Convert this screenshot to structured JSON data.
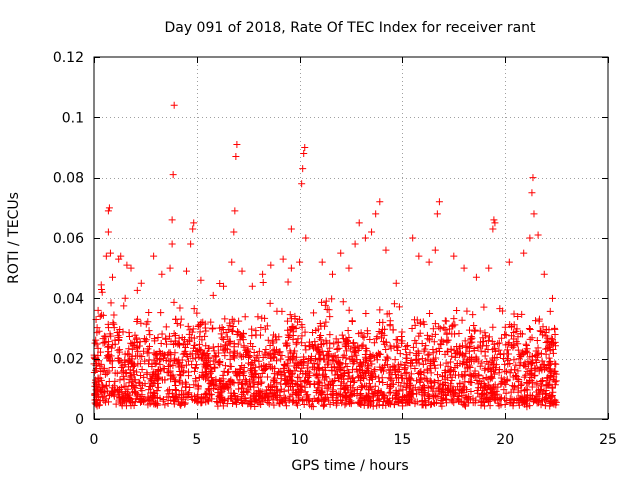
{
  "chart_data": {
    "type": "scatter",
    "title": "Day 091 of 2018, Rate Of TEC Index for receiver rant",
    "xlabel": "GPS time / hours",
    "ylabel": "ROTI / TECUs",
    "xlim": [
      0,
      25
    ],
    "ylim": [
      0,
      0.12
    ],
    "x_ticks": [
      0,
      5,
      10,
      15,
      20,
      25
    ],
    "y_ticks": [
      0,
      0.02,
      0.04,
      0.06,
      0.08,
      0.1,
      0.12
    ],
    "x_tick_labels": [
      "0",
      "5",
      "10",
      "15",
      "20",
      "25"
    ],
    "y_tick_labels": [
      "0",
      "0.02",
      "0.04",
      "0.06",
      "0.08",
      "0.1",
      "0.12"
    ],
    "grid": true,
    "marker": "plus",
    "color": "#ff0000",
    "data_extent_x": [
      0,
      22.5
    ],
    "series": [
      {
        "name": "ROTI",
        "note": "dense scatter band ~0.005-0.03 TECU/s across 0-22.5 h; notable outliers listed",
        "points": [
          {
            "x": 0.1,
            "y": 0.033
          },
          {
            "x": 0.2,
            "y": 0.036
          },
          {
            "x": 0.4,
            "y": 0.042
          },
          {
            "x": 0.6,
            "y": 0.054
          },
          {
            "x": 0.7,
            "y": 0.062
          },
          {
            "x": 0.7,
            "y": 0.069
          },
          {
            "x": 0.75,
            "y": 0.07
          },
          {
            "x": 0.8,
            "y": 0.055
          },
          {
            "x": 0.9,
            "y": 0.047
          },
          {
            "x": 1.2,
            "y": 0.053
          },
          {
            "x": 1.3,
            "y": 0.054
          },
          {
            "x": 1.6,
            "y": 0.051
          },
          {
            "x": 1.8,
            "y": 0.05
          },
          {
            "x": 2.3,
            "y": 0.045
          },
          {
            "x": 2.9,
            "y": 0.054
          },
          {
            "x": 3.3,
            "y": 0.048
          },
          {
            "x": 3.7,
            "y": 0.05
          },
          {
            "x": 3.8,
            "y": 0.058
          },
          {
            "x": 3.8,
            "y": 0.066
          },
          {
            "x": 3.85,
            "y": 0.081
          },
          {
            "x": 3.9,
            "y": 0.104
          },
          {
            "x": 4.5,
            "y": 0.049
          },
          {
            "x": 4.7,
            "y": 0.058
          },
          {
            "x": 4.8,
            "y": 0.063
          },
          {
            "x": 4.85,
            "y": 0.065
          },
          {
            "x": 5.2,
            "y": 0.046
          },
          {
            "x": 5.8,
            "y": 0.041
          },
          {
            "x": 6.3,
            "y": 0.044
          },
          {
            "x": 6.7,
            "y": 0.052
          },
          {
            "x": 6.8,
            "y": 0.062
          },
          {
            "x": 6.85,
            "y": 0.069
          },
          {
            "x": 6.9,
            "y": 0.087
          },
          {
            "x": 6.95,
            "y": 0.091
          },
          {
            "x": 7.2,
            "y": 0.049
          },
          {
            "x": 7.7,
            "y": 0.044
          },
          {
            "x": 8.2,
            "y": 0.048
          },
          {
            "x": 8.6,
            "y": 0.051
          },
          {
            "x": 9.2,
            "y": 0.053
          },
          {
            "x": 9.6,
            "y": 0.05
          },
          {
            "x": 9.6,
            "y": 0.063
          },
          {
            "x": 10.0,
            "y": 0.052
          },
          {
            "x": 10.1,
            "y": 0.078
          },
          {
            "x": 10.15,
            "y": 0.083
          },
          {
            "x": 10.2,
            "y": 0.088
          },
          {
            "x": 10.25,
            "y": 0.09
          },
          {
            "x": 10.3,
            "y": 0.06
          },
          {
            "x": 11.1,
            "y": 0.052
          },
          {
            "x": 11.6,
            "y": 0.048
          },
          {
            "x": 12.0,
            "y": 0.055
          },
          {
            "x": 12.4,
            "y": 0.05
          },
          {
            "x": 12.7,
            "y": 0.058
          },
          {
            "x": 12.9,
            "y": 0.065
          },
          {
            "x": 13.2,
            "y": 0.06
          },
          {
            "x": 13.5,
            "y": 0.062
          },
          {
            "x": 13.7,
            "y": 0.068
          },
          {
            "x": 13.9,
            "y": 0.072
          },
          {
            "x": 14.2,
            "y": 0.056
          },
          {
            "x": 14.7,
            "y": 0.045
          },
          {
            "x": 15.5,
            "y": 0.06
          },
          {
            "x": 15.8,
            "y": 0.054
          },
          {
            "x": 16.3,
            "y": 0.052
          },
          {
            "x": 16.6,
            "y": 0.056
          },
          {
            "x": 16.7,
            "y": 0.068
          },
          {
            "x": 16.8,
            "y": 0.072
          },
          {
            "x": 17.5,
            "y": 0.054
          },
          {
            "x": 18.0,
            "y": 0.05
          },
          {
            "x": 18.6,
            "y": 0.047
          },
          {
            "x": 19.2,
            "y": 0.05
          },
          {
            "x": 19.4,
            "y": 0.063
          },
          {
            "x": 19.45,
            "y": 0.066
          },
          {
            "x": 19.5,
            "y": 0.065
          },
          {
            "x": 20.2,
            "y": 0.052
          },
          {
            "x": 20.9,
            "y": 0.055
          },
          {
            "x": 21.2,
            "y": 0.06
          },
          {
            "x": 21.3,
            "y": 0.075
          },
          {
            "x": 21.35,
            "y": 0.08
          },
          {
            "x": 21.4,
            "y": 0.068
          },
          {
            "x": 21.6,
            "y": 0.061
          },
          {
            "x": 21.9,
            "y": 0.048
          },
          {
            "x": 22.3,
            "y": 0.04
          }
        ]
      }
    ]
  }
}
